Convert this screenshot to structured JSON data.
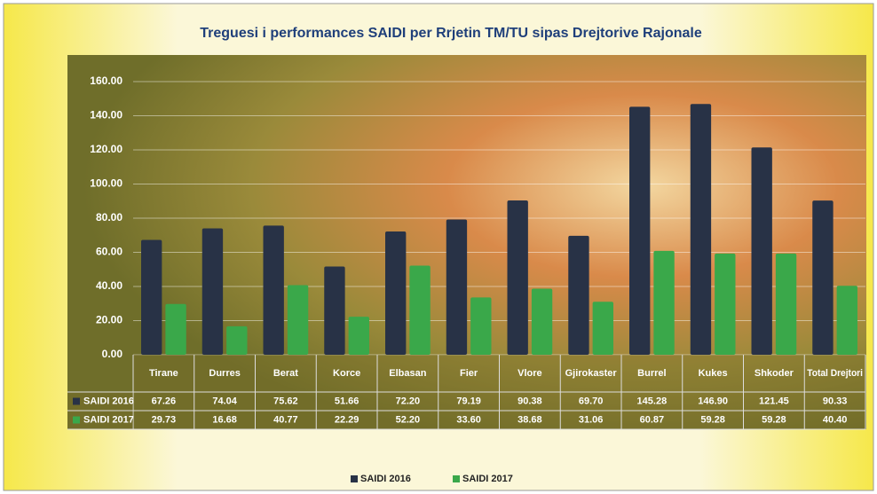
{
  "chart_data": {
    "type": "bar",
    "title": "Treguesi i performances SAIDI per Rrjetin TM/TU sipas Drejtorive Rajonale",
    "categories": [
      "Tirane",
      "Durres",
      "Berat",
      "Korce",
      "Elbasan",
      "Fier",
      "Vlore",
      "Gjirokaster",
      "Burrel",
      "Kukes",
      "Shkoder",
      "Total Drejtori"
    ],
    "series": [
      {
        "name": "SAIDI 2016",
        "color": "#283246",
        "values": [
          67.26,
          74.04,
          75.62,
          51.66,
          72.2,
          79.19,
          90.38,
          69.7,
          145.28,
          146.9,
          121.45,
          90.33
        ],
        "value_labels": [
          "67.26",
          "74.04",
          "75.62",
          "51.66",
          "72.20",
          "79.19",
          "90.38",
          "69.70",
          "145.28",
          "146.90",
          "121.45",
          "90.33"
        ]
      },
      {
        "name": "SAIDI 2017",
        "color": "#3aa84a",
        "values": [
          29.73,
          16.68,
          40.77,
          22.29,
          52.2,
          33.6,
          38.68,
          31.06,
          60.87,
          59.28,
          59.28,
          40.4
        ],
        "value_labels": [
          "29.73",
          "16.68",
          "40.77",
          "22.29",
          "52.20",
          "33.60",
          "38.68",
          "31.06",
          "60.87",
          "59.28",
          "59.28",
          "40.40"
        ]
      }
    ],
    "ylim": [
      0,
      160
    ],
    "yticks": [
      {
        "value": 0,
        "label": "0.00"
      },
      {
        "value": 20,
        "label": "20.00"
      },
      {
        "value": 40,
        "label": "40.00"
      },
      {
        "value": 60,
        "label": "60.00"
      },
      {
        "value": 80,
        "label": "80.00"
      },
      {
        "value": 100,
        "label": "100.00"
      },
      {
        "value": 120,
        "label": "120.00"
      },
      {
        "value": 140,
        "label": "140.00"
      },
      {
        "value": 160,
        "label": "160.00"
      }
    ],
    "grid": true
  }
}
